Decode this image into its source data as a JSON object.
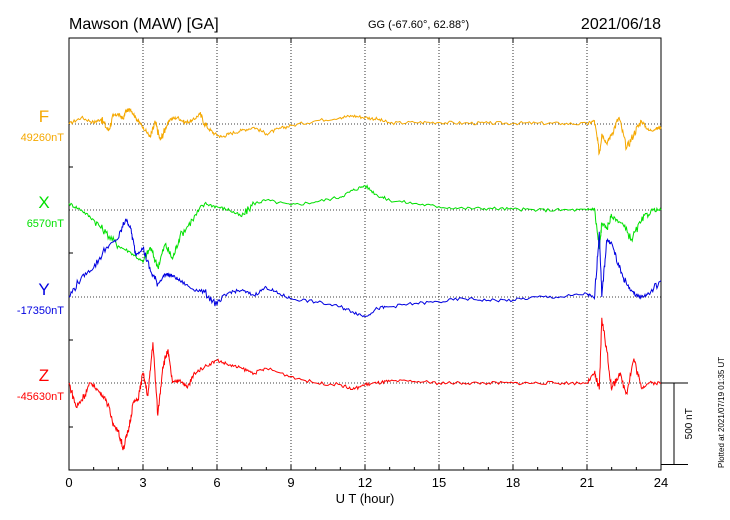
{
  "header": {
    "station": "Mawson (MAW)  [GA]",
    "coords": "GG (-67.60°,  62.88°)",
    "date": "2021/06/18"
  },
  "footer_note": "Plotted at 2021/07/19 01:35 UT",
  "chart_data": {
    "type": "line",
    "xlabel": "U T (hour)",
    "ylabel": "",
    "xlim": [
      0,
      24
    ],
    "xticks": [
      "0",
      "3",
      "6",
      "9",
      "12",
      "15",
      "18",
      "21",
      "24"
    ],
    "grid": true,
    "scale_bar_label": "500 nT",
    "scale_bar_nT": 500,
    "series": [
      {
        "name": "F",
        "baseline_label": "49260nT",
        "color": "#f5a800",
        "x": [
          0,
          0.5,
          1,
          1.3,
          1.6,
          1.8,
          2.0,
          2.2,
          2.3,
          2.5,
          2.7,
          2.9,
          3.1,
          3.3,
          3.5,
          3.7,
          3.9,
          4.1,
          4.4,
          4.7,
          5,
          5.3,
          5.6,
          5.9,
          6.2,
          6.5,
          7,
          7.5,
          8,
          8.5,
          9,
          10,
          11,
          11.5,
          12,
          12.5,
          13,
          14,
          15,
          16,
          17,
          18,
          19,
          20,
          21,
          21.3,
          21.5,
          21.6,
          21.8,
          22,
          22.3,
          22.6,
          22.9,
          23.2,
          23.5,
          23.8,
          24
        ],
        "y": [
          0,
          40,
          10,
          30,
          -40,
          50,
          60,
          30,
          80,
          90,
          40,
          0,
          -40,
          -80,
          10,
          -100,
          -30,
          30,
          40,
          10,
          20,
          60,
          -20,
          -60,
          -80,
          -60,
          -40,
          -20,
          -60,
          -30,
          -10,
          20,
          40,
          50,
          40,
          30,
          5,
          10,
          10,
          5,
          5,
          5,
          5,
          3,
          0,
          20,
          -180,
          -60,
          -120,
          -60,
          40,
          -150,
          -60,
          20,
          -40,
          -30,
          -20
        ]
      },
      {
        "name": "X",
        "baseline_label": "6570nT",
        "color": "#00e000",
        "x": [
          0,
          0.5,
          1,
          1.5,
          2,
          2.5,
          3,
          3.3,
          3.6,
          3.9,
          4.2,
          4.5,
          5,
          5.5,
          6,
          6.5,
          7,
          7.5,
          8,
          9,
          10,
          11,
          11.5,
          12,
          12.5,
          13,
          14,
          15,
          16,
          17,
          18,
          19,
          20,
          21,
          21.3,
          21.5,
          21.6,
          21.8,
          22,
          22.4,
          22.8,
          23.2,
          23.6,
          24
        ],
        "y": [
          40,
          0,
          -60,
          -140,
          -220,
          -260,
          -320,
          -230,
          -350,
          -210,
          -300,
          -160,
          -60,
          40,
          20,
          0,
          -40,
          40,
          60,
          30,
          50,
          80,
          120,
          150,
          90,
          60,
          40,
          20,
          10,
          10,
          5,
          0,
          0,
          0,
          10,
          -240,
          -80,
          -110,
          -40,
          -80,
          -180,
          -70,
          0,
          0
        ]
      },
      {
        "name": "Y",
        "baseline_label": "-17350nT",
        "color": "#0000e0",
        "x": [
          0,
          0.5,
          1,
          1.5,
          2,
          2.3,
          2.5,
          2.7,
          3,
          3.3,
          3.6,
          3.9,
          4.2,
          4.5,
          5,
          5.5,
          6,
          6.5,
          7,
          7.5,
          8,
          8.5,
          9,
          10,
          11,
          11.5,
          12,
          12.5,
          13,
          14,
          15,
          16,
          17,
          18,
          19,
          20,
          21,
          21.3,
          21.5,
          21.6,
          21.8,
          22,
          22.3,
          22.6,
          22.9,
          23.2,
          23.5,
          24
        ],
        "y": [
          0,
          120,
          180,
          300,
          360,
          480,
          420,
          260,
          300,
          160,
          80,
          140,
          130,
          100,
          50,
          30,
          -50,
          30,
          40,
          10,
          60,
          20,
          -10,
          -30,
          -60,
          -90,
          -120,
          -70,
          -60,
          -40,
          -30,
          -10,
          -20,
          -20,
          0,
          0,
          20,
          -10,
          400,
          0,
          350,
          330,
          180,
          80,
          20,
          0,
          20,
          100
        ]
      },
      {
        "name": "Z",
        "baseline_label": "-45630nT",
        "color": "#ff0000",
        "x": [
          0,
          0.3,
          0.6,
          0.9,
          1.2,
          1.5,
          1.8,
          2.0,
          2.2,
          2.4,
          2.6,
          2.8,
          3.0,
          3.2,
          3.4,
          3.6,
          3.8,
          4.0,
          4.2,
          4.5,
          4.8,
          5.1,
          5.5,
          6,
          6.5,
          7,
          7.5,
          8,
          9,
          10,
          11,
          11.5,
          12,
          12.5,
          13,
          14,
          15,
          16,
          17,
          18,
          19,
          20,
          21,
          21.3,
          21.5,
          21.6,
          21.8,
          22,
          22.3,
          22.6,
          22.9,
          23.2,
          23.5,
          24
        ],
        "y": [
          0,
          -150,
          -80,
          0,
          -50,
          -100,
          -250,
          -300,
          -400,
          -300,
          -120,
          -100,
          60,
          -80,
          250,
          -200,
          100,
          200,
          0,
          20,
          -30,
          60,
          100,
          140,
          110,
          90,
          60,
          90,
          40,
          0,
          -10,
          -40,
          -10,
          0,
          10,
          10,
          0,
          0,
          0,
          0,
          0,
          0,
          0,
          60,
          -40,
          400,
          200,
          -40,
          60,
          -60,
          150,
          -30,
          0,
          0
        ]
      }
    ]
  }
}
